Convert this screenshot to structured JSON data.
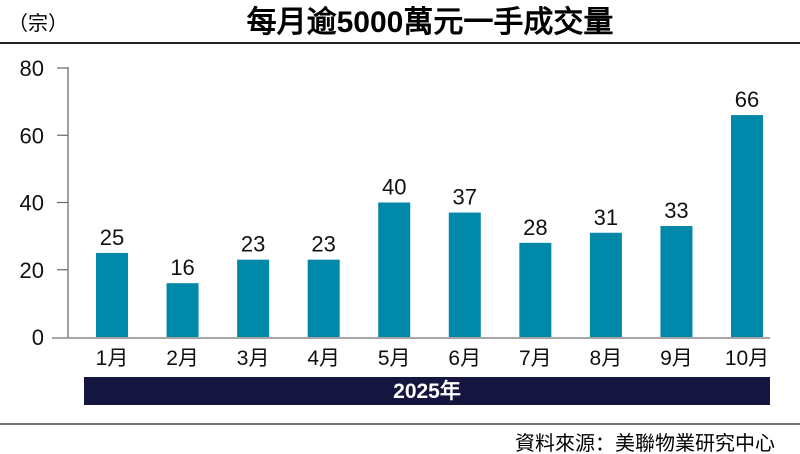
{
  "chart_data": {
    "type": "bar",
    "title": "每月逾5000萬元一手成交量",
    "ylabel": "（宗）",
    "xlabel": "2025年",
    "categories": [
      "1月",
      "2月",
      "3月",
      "4月",
      "5月",
      "6月",
      "7月",
      "8月",
      "9月",
      "10月"
    ],
    "values": [
      25,
      16,
      23,
      23,
      40,
      37,
      28,
      31,
      33,
      66
    ],
    "yticks": [
      0,
      20,
      40,
      60,
      80
    ],
    "ylim": [
      0,
      80
    ],
    "grid": false,
    "legend": "none",
    "source": "資料來源：美聯物業研究中心",
    "colors": {
      "bar": "#0088a8",
      "year_band": "#14163f",
      "text": "#111111"
    }
  }
}
